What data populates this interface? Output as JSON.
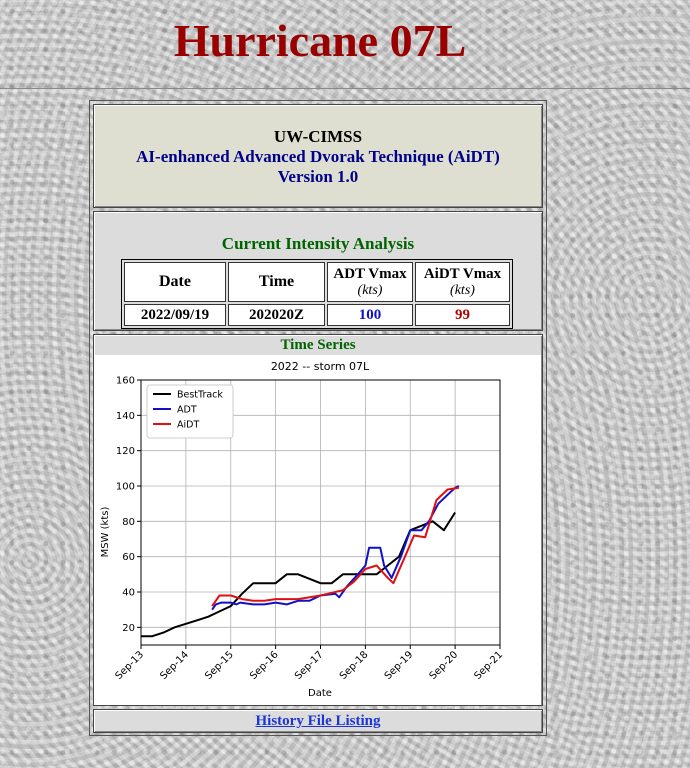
{
  "page": {
    "title": "Hurricane 07L"
  },
  "header": {
    "org": "UW-CIMSS",
    "product": "AI-enhanced Advanced Dvorak Technique (AiDT)",
    "version": "Version 1.0"
  },
  "current": {
    "heading": "Current Intensity Analysis",
    "columns": {
      "date": "Date",
      "time": "Time",
      "adt": "ADT Vmax",
      "aidt": "AiDT Vmax",
      "unit": "(kts)"
    },
    "row": {
      "date": "2022/09/19",
      "time": "202020Z",
      "adt": "100",
      "aidt": "99"
    }
  },
  "timeseries": {
    "heading": "Time Series"
  },
  "footer": {
    "history_link": "History File Listing"
  },
  "colors": {
    "title": "#990000",
    "besttrack": "#000000",
    "adt": "#1010c8",
    "aidt": "#e01010"
  },
  "chart_data": {
    "type": "line",
    "title": "2022 -- storm 07L",
    "xlabel": "Date",
    "ylabel": "MSW (kts)",
    "xlim": [
      "2022-09-13",
      "2022-09-21"
    ],
    "ylim": [
      10,
      160
    ],
    "xticks": [
      "Sep-13",
      "Sep-14",
      "Sep-15",
      "Sep-16",
      "Sep-17",
      "Sep-18",
      "Sep-19",
      "Sep-20",
      "Sep-21"
    ],
    "yticks": [
      20,
      40,
      60,
      80,
      100,
      120,
      140,
      160
    ],
    "grid": true,
    "legend": "top-left",
    "series": [
      {
        "name": "BestTrack",
        "color": "#000000",
        "points": [
          [
            "2022-09-13T00",
            15
          ],
          [
            "2022-09-13T06",
            15
          ],
          [
            "2022-09-13T12",
            17
          ],
          [
            "2022-09-13T18",
            20
          ],
          [
            "2022-09-14T00",
            22
          ],
          [
            "2022-09-14T06",
            24
          ],
          [
            "2022-09-14T12",
            26
          ],
          [
            "2022-09-14T18",
            29
          ],
          [
            "2022-09-15T00",
            32
          ],
          [
            "2022-09-15T06",
            39
          ],
          [
            "2022-09-15T12",
            45
          ],
          [
            "2022-09-16T00",
            45
          ],
          [
            "2022-09-16T06",
            50
          ],
          [
            "2022-09-16T12",
            50
          ],
          [
            "2022-09-17T00",
            45
          ],
          [
            "2022-09-17T06",
            45
          ],
          [
            "2022-09-17T12",
            50
          ],
          [
            "2022-09-18T00",
            50
          ],
          [
            "2022-09-18T06",
            50
          ],
          [
            "2022-09-18T12",
            55
          ],
          [
            "2022-09-18T18",
            60
          ],
          [
            "2022-09-19T00",
            75
          ],
          [
            "2022-09-19T12",
            80
          ],
          [
            "2022-09-19T18",
            75
          ],
          [
            "2022-09-20T00",
            85
          ]
        ]
      },
      {
        "name": "ADT",
        "color": "#1010c8",
        "points": [
          [
            "2022-09-14T14",
            30
          ],
          [
            "2022-09-14T16",
            33
          ],
          [
            "2022-09-14T19",
            34
          ],
          [
            "2022-09-15T00",
            34
          ],
          [
            "2022-09-15T03",
            33
          ],
          [
            "2022-09-15T05",
            34
          ],
          [
            "2022-09-15T12",
            33
          ],
          [
            "2022-09-15T18",
            33
          ],
          [
            "2022-09-16T00",
            34
          ],
          [
            "2022-09-16T06",
            33
          ],
          [
            "2022-09-16T09",
            34
          ],
          [
            "2022-09-16T12",
            35
          ],
          [
            "2022-09-16T18",
            35
          ],
          [
            "2022-09-17T00",
            38
          ],
          [
            "2022-09-17T08",
            39
          ],
          [
            "2022-09-17T10",
            37
          ],
          [
            "2022-09-17T14",
            43
          ],
          [
            "2022-09-17T20",
            50
          ],
          [
            "2022-09-18T00",
            55
          ],
          [
            "2022-09-18T02",
            65
          ],
          [
            "2022-09-18T08",
            65
          ],
          [
            "2022-09-18T10",
            55
          ],
          [
            "2022-09-18T14",
            48
          ],
          [
            "2022-09-18T19",
            60
          ],
          [
            "2022-09-19T00",
            75
          ],
          [
            "2022-09-19T06",
            75
          ],
          [
            "2022-09-19T10",
            80
          ],
          [
            "2022-09-19T15",
            90
          ],
          [
            "2022-09-19T20",
            95
          ],
          [
            "2022-09-20T00",
            99
          ],
          [
            "2022-09-20T02",
            100
          ]
        ]
      },
      {
        "name": "AiDT",
        "color": "#e01010",
        "points": [
          [
            "2022-09-14T14",
            32
          ],
          [
            "2022-09-14T18",
            38
          ],
          [
            "2022-09-15T00",
            38
          ],
          [
            "2022-09-15T06",
            36
          ],
          [
            "2022-09-15T12",
            35
          ],
          [
            "2022-09-15T18",
            35
          ],
          [
            "2022-09-16T00",
            36
          ],
          [
            "2022-09-16T12",
            36
          ],
          [
            "2022-09-17T00",
            38
          ],
          [
            "2022-09-17T12",
            41
          ],
          [
            "2022-09-17T18",
            46
          ],
          [
            "2022-09-18T00",
            53
          ],
          [
            "2022-09-18T06",
            55
          ],
          [
            "2022-09-18T12",
            48
          ],
          [
            "2022-09-18T15",
            45
          ],
          [
            "2022-09-18T22",
            62
          ],
          [
            "2022-09-19T02",
            72
          ],
          [
            "2022-09-19T08",
            71
          ],
          [
            "2022-09-19T14",
            92
          ],
          [
            "2022-09-19T20",
            98
          ],
          [
            "2022-09-20T02",
            99
          ]
        ]
      }
    ]
  }
}
